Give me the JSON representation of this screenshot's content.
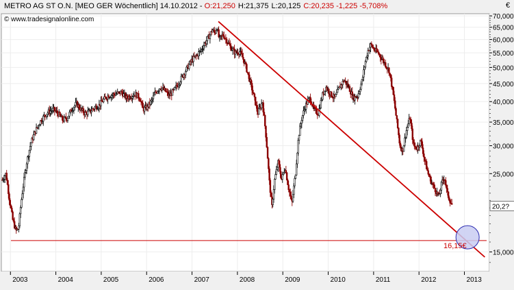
{
  "header": {
    "instrument": "METRO AG ST O.N. [MEO GER  Wöchentlich] 14.10.2012 - ",
    "ohlc_open": "O:21,250",
    "ohlc_high": "H:21,375",
    "ohlc_low": "L:20,125",
    "ohlc_close_change": "C:20,235 -1,225 -5,708%",
    "currency": "€",
    "watermark": "© www.tradesignalonline.com"
  },
  "colors": {
    "background": "#ffffff",
    "frame": "#f0f0f0",
    "trendline": "#cc0000",
    "support_line": "#cc0000",
    "circle_fill": "#c9ccf2",
    "circle_stroke": "#2a2ab0",
    "candle_up": "#000000",
    "candle_down": "#8b0000",
    "price_box": "#ffffff"
  },
  "annotations": {
    "support_label": "16,15€",
    "last_price_label": "20,2?"
  },
  "chart_data": {
    "type": "candlestick-line",
    "title": "METRO AG ST O.N.",
    "interval": "Wöchentlich",
    "y_scale": "log",
    "ylim": [
      13.2,
      71
    ],
    "y_ticks": [
      "15,000",
      "25,000",
      "30,000",
      "35,000",
      "40,000",
      "45,000",
      "50,000",
      "55,000",
      "60,000",
      "65,000",
      "70,000"
    ],
    "y_tick_values": [
      15,
      25,
      30,
      35,
      40,
      45,
      50,
      55,
      60,
      65,
      70
    ],
    "x_ticks": [
      "2003",
      "2004",
      "2005",
      "2006",
      "2007",
      "2008",
      "2009",
      "2010",
      "2011",
      "2012",
      "2013"
    ],
    "x_tick_years": [
      2003,
      2004,
      2005,
      2006,
      2007,
      2008,
      2009,
      2010,
      2011,
      2012,
      2013
    ],
    "xlim": [
      2002.8,
      2013.55
    ],
    "price_path": [
      [
        2002.82,
        24
      ],
      [
        2002.9,
        25
      ],
      [
        2002.98,
        21
      ],
      [
        2003.05,
        18.5
      ],
      [
        2003.12,
        17.2
      ],
      [
        2003.18,
        17.5
      ],
      [
        2003.24,
        21
      ],
      [
        2003.3,
        24
      ],
      [
        2003.36,
        27
      ],
      [
        2003.45,
        30.5
      ],
      [
        2003.55,
        33
      ],
      [
        2003.65,
        35
      ],
      [
        2003.75,
        36.5
      ],
      [
        2003.85,
        37.5
      ],
      [
        2003.95,
        38
      ],
      [
        2004.05,
        37
      ],
      [
        2004.15,
        35.5
      ],
      [
        2004.25,
        36
      ],
      [
        2004.35,
        38
      ],
      [
        2004.45,
        39.5
      ],
      [
        2004.55,
        38
      ],
      [
        2004.65,
        37
      ],
      [
        2004.75,
        37.5
      ],
      [
        2004.85,
        38.5
      ],
      [
        2004.95,
        39
      ],
      [
        2005.05,
        40.5
      ],
      [
        2005.15,
        41.5
      ],
      [
        2005.3,
        42
      ],
      [
        2005.45,
        42.5
      ],
      [
        2005.55,
        41
      ],
      [
        2005.65,
        41.5
      ],
      [
        2005.75,
        42
      ],
      [
        2005.85,
        41
      ],
      [
        2005.92,
        38
      ],
      [
        2006.0,
        38.5
      ],
      [
        2006.1,
        40
      ],
      [
        2006.2,
        42.5
      ],
      [
        2006.3,
        44
      ],
      [
        2006.4,
        43
      ],
      [
        2006.5,
        41.5
      ],
      [
        2006.6,
        43
      ],
      [
        2006.7,
        45
      ],
      [
        2006.8,
        47.5
      ],
      [
        2006.9,
        50
      ],
      [
        2007.0,
        52.5
      ],
      [
        2007.1,
        54
      ],
      [
        2007.2,
        56
      ],
      [
        2007.3,
        59
      ],
      [
        2007.4,
        62
      ],
      [
        2007.45,
        64
      ],
      [
        2007.5,
        62.5
      ],
      [
        2007.55,
        65
      ],
      [
        2007.6,
        60
      ],
      [
        2007.68,
        62
      ],
      [
        2007.75,
        60
      ],
      [
        2007.85,
        57
      ],
      [
        2007.95,
        55
      ],
      [
        2008.05,
        55.5
      ],
      [
        2008.15,
        52
      ],
      [
        2008.25,
        47
      ],
      [
        2008.35,
        42
      ],
      [
        2008.45,
        37
      ],
      [
        2008.55,
        40
      ],
      [
        2008.62,
        33
      ],
      [
        2008.7,
        24
      ],
      [
        2008.76,
        20
      ],
      [
        2008.82,
        24
      ],
      [
        2008.9,
        27
      ],
      [
        2008.97,
        24
      ],
      [
        2009.05,
        26
      ],
      [
        2009.12,
        23
      ],
      [
        2009.2,
        20.5
      ],
      [
        2009.28,
        25
      ],
      [
        2009.35,
        32
      ],
      [
        2009.42,
        36
      ],
      [
        2009.5,
        39
      ],
      [
        2009.6,
        41
      ],
      [
        2009.68,
        38
      ],
      [
        2009.78,
        37
      ],
      [
        2009.88,
        42
      ],
      [
        2009.95,
        44
      ],
      [
        2010.05,
        42
      ],
      [
        2010.15,
        41
      ],
      [
        2010.25,
        44
      ],
      [
        2010.35,
        46
      ],
      [
        2010.45,
        44
      ],
      [
        2010.55,
        41
      ],
      [
        2010.65,
        41.5
      ],
      [
        2010.75,
        46
      ],
      [
        2010.82,
        52
      ],
      [
        2010.88,
        56
      ],
      [
        2010.94,
        58
      ],
      [
        2011.02,
        56
      ],
      [
        2011.1,
        55
      ],
      [
        2011.18,
        53
      ],
      [
        2011.26,
        51
      ],
      [
        2011.34,
        49
      ],
      [
        2011.42,
        43
      ],
      [
        2011.5,
        36
      ],
      [
        2011.58,
        30
      ],
      [
        2011.64,
        29
      ],
      [
        2011.72,
        33
      ],
      [
        2011.8,
        36
      ],
      [
        2011.88,
        30
      ],
      [
        2011.96,
        29.5
      ],
      [
        2012.04,
        31
      ],
      [
        2012.12,
        27.5
      ],
      [
        2012.2,
        25
      ],
      [
        2012.28,
        23.5
      ],
      [
        2012.36,
        22.5
      ],
      [
        2012.44,
        21.5
      ],
      [
        2012.5,
        23.5
      ],
      [
        2012.56,
        24.5
      ],
      [
        2012.62,
        22
      ],
      [
        2012.68,
        21
      ],
      [
        2012.74,
        20.2
      ]
    ],
    "trendline": {
      "start": [
        2007.58,
        67.5
      ],
      "end": [
        2013.45,
        14.5
      ]
    },
    "support_level": 16.15,
    "target_circle": {
      "date": 2013.07,
      "price": 16.5
    },
    "last_close": 20.235
  }
}
